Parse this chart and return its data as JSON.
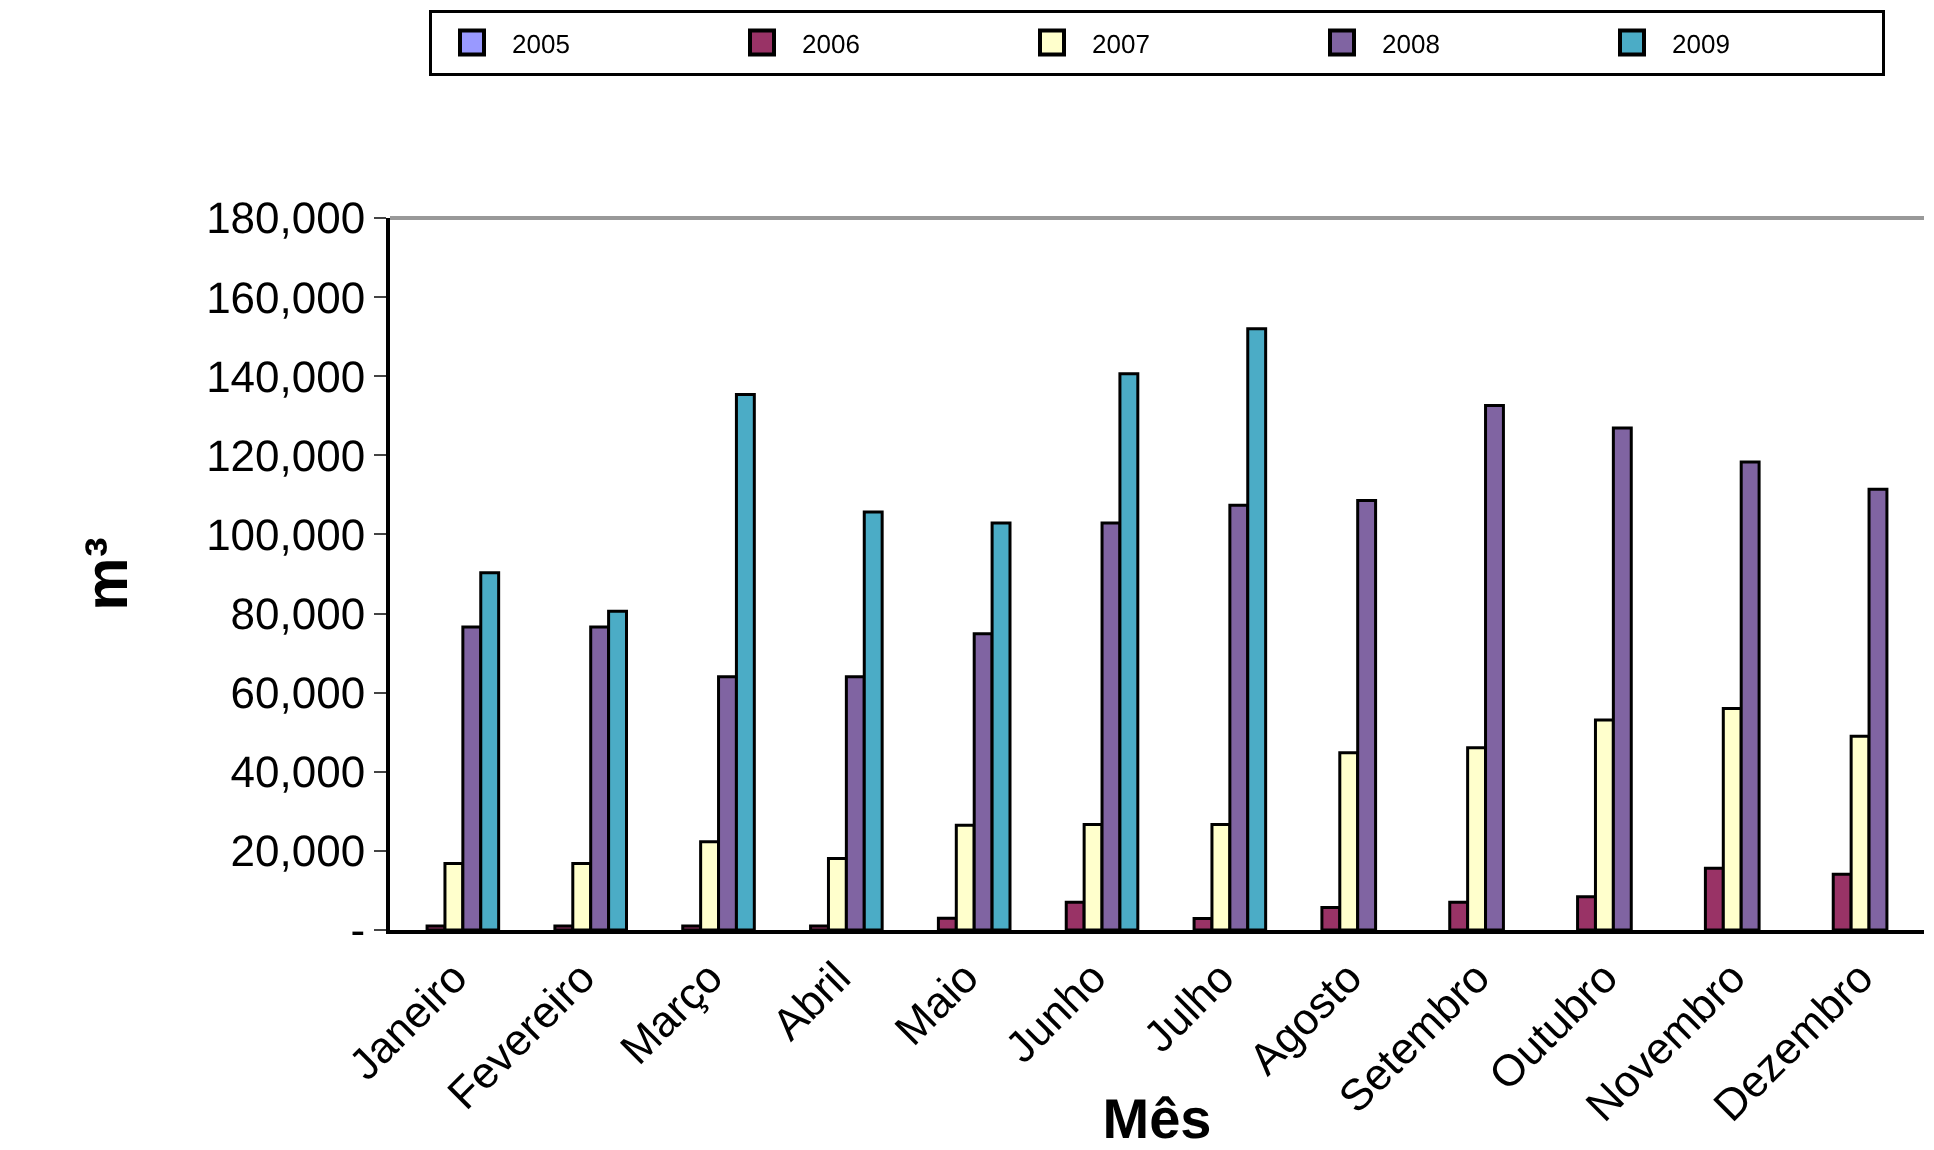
{
  "chart_data": {
    "type": "bar",
    "xlabel": "Mês",
    "ylabel": "m³",
    "categories": [
      "Janeiro",
      "Fevereiro",
      "Março",
      "Abril",
      "Maio",
      "Junho",
      "Julho",
      "Agosto",
      "Setembro",
      "Outubro",
      "Novembro",
      "Dezembro"
    ],
    "series": [
      {
        "name": "2005",
        "color": "#9999ff",
        "values": [
          null,
          null,
          null,
          null,
          null,
          null,
          null,
          null,
          null,
          null,
          null,
          null
        ]
      },
      {
        "name": "2006",
        "color": "#993366",
        "values": [
          1000,
          1000,
          1000,
          1000,
          3000,
          7000,
          2900,
          5700,
          7000,
          8400,
          15600,
          14100
        ]
      },
      {
        "name": "2007",
        "color": "#ffffcc",
        "values": [
          16800,
          16800,
          22300,
          18100,
          26500,
          26700,
          26700,
          44800,
          46100,
          53100,
          56000,
          49000
        ]
      },
      {
        "name": "2008",
        "color": "#8064a2",
        "values": [
          76600,
          76600,
          64000,
          64000,
          74900,
          102900,
          107400,
          108600,
          132600,
          126900,
          118300,
          111400
        ]
      },
      {
        "name": "2009",
        "color": "#4bacc6",
        "values": [
          90300,
          80600,
          135400,
          105700,
          102900,
          140600,
          152000,
          null,
          null,
          null,
          null,
          null
        ]
      }
    ],
    "ylim": [
      0,
      180000
    ],
    "yticks": [
      {
        "value": 0,
        "label": "-"
      },
      {
        "value": 20000,
        "label": "20,000"
      },
      {
        "value": 40000,
        "label": "40,000"
      },
      {
        "value": 60000,
        "label": "60,000"
      },
      {
        "value": 80000,
        "label": "80,000"
      },
      {
        "value": 100000,
        "label": "100,000"
      },
      {
        "value": 120000,
        "label": "120,000"
      },
      {
        "value": 140000,
        "label": "140,000"
      },
      {
        "value": 160000,
        "label": "160,000"
      },
      {
        "value": 180000,
        "label": "180,000"
      }
    ],
    "grid": false,
    "legend": "top"
  }
}
